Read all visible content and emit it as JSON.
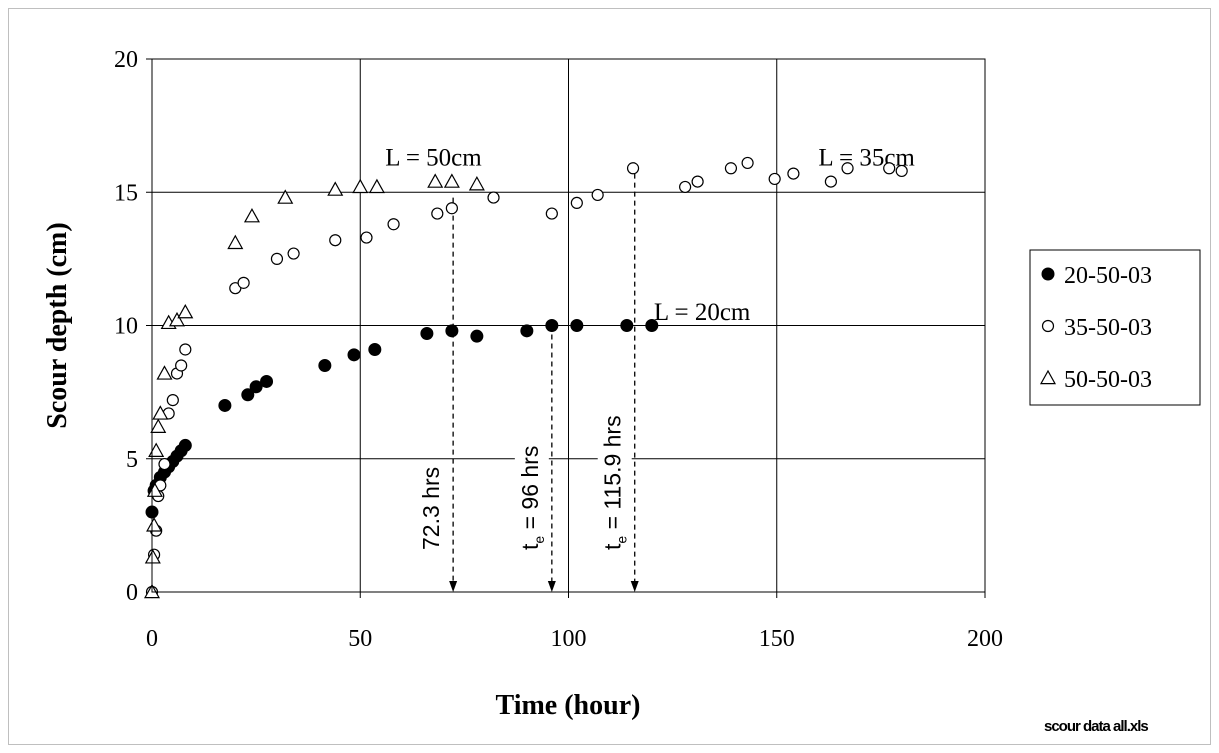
{
  "chart_data": {
    "type": "scatter",
    "title": "",
    "xlabel": "Time (hour)",
    "ylabel": "Scour depth (cm)",
    "xlim": [
      0,
      200
    ],
    "ylim": [
      0,
      20
    ],
    "xticks": [
      0,
      50,
      100,
      150,
      200
    ],
    "yticks": [
      0,
      5,
      10,
      15,
      20
    ],
    "grid": true,
    "legend_position": "right",
    "series": [
      {
        "name": "20-50-03",
        "marker": "filled-circle",
        "x": [
          0,
          0.5,
          1,
          2,
          3,
          4,
          5,
          6,
          7,
          8,
          17.5,
          23,
          25,
          27.5,
          41.5,
          48.5,
          53.5,
          66,
          72,
          78,
          90,
          96,
          102,
          114,
          120
        ],
        "y": [
          3.0,
          3.8,
          4.0,
          4.3,
          4.5,
          4.7,
          4.9,
          5.1,
          5.3,
          5.5,
          7.0,
          7.4,
          7.7,
          7.9,
          8.5,
          8.9,
          9.1,
          9.7,
          9.8,
          9.6,
          9.8,
          10.0,
          10.0,
          10.0,
          10.0
        ]
      },
      {
        "name": "35-50-03",
        "marker": "open-circle",
        "x": [
          0,
          0.5,
          1,
          1.5,
          2,
          3,
          4,
          5,
          6,
          7,
          8,
          20,
          22,
          30,
          34,
          44,
          51.5,
          58,
          68.5,
          72,
          82,
          96,
          102,
          107,
          115.5,
          128,
          131,
          139,
          143,
          149.5,
          154,
          163,
          167,
          177,
          180
        ],
        "y": [
          0,
          1.4,
          2.3,
          3.6,
          4.0,
          4.8,
          6.7,
          7.2,
          8.2,
          8.5,
          9.1,
          11.4,
          11.6,
          12.5,
          12.7,
          13.2,
          13.3,
          13.8,
          14.2,
          14.4,
          14.8,
          14.2,
          14.6,
          14.9,
          15.9,
          15.2,
          15.4,
          15.9,
          16.1,
          15.5,
          15.7,
          15.4,
          15.9,
          15.9,
          15.8
        ]
      },
      {
        "name": "50-50-03",
        "marker": "open-triangle",
        "x": [
          0,
          0.2,
          0.5,
          0.7,
          1,
          1.5,
          2,
          3,
          4,
          6,
          8,
          20,
          24,
          32,
          44,
          50,
          54,
          68,
          72,
          78
        ],
        "y": [
          0,
          1.3,
          2.5,
          3.8,
          5.3,
          6.2,
          6.7,
          8.2,
          10.1,
          10.2,
          10.5,
          13.1,
          14.1,
          14.8,
          15.1,
          15.2,
          15.2,
          15.4,
          15.4,
          15.3
        ]
      }
    ],
    "annotations": {
      "series_labels": [
        {
          "text": "L = 50cm",
          "x": 56,
          "y": 16.0
        },
        {
          "text": "L = 35cm",
          "x": 160,
          "y": 16.0
        },
        {
          "text": "L = 20cm",
          "x": 120.5,
          "y": 10.2
        }
      ],
      "markers": [
        {
          "x": 72.3,
          "y_top": 14.8,
          "label": "72.3 hrs"
        },
        {
          "x": 96,
          "y_top": 10.0,
          "label": "tₑ = 96 hrs"
        },
        {
          "x": 115.9,
          "y_top": 15.7,
          "label": "tₑ = 115.9 hrs"
        }
      ]
    },
    "footnote": "scour data all.xls"
  },
  "colors": {
    "grid": "#000000",
    "frame": "#bfbfbf",
    "marker_fill": "#000000",
    "background": "#ffffff"
  }
}
